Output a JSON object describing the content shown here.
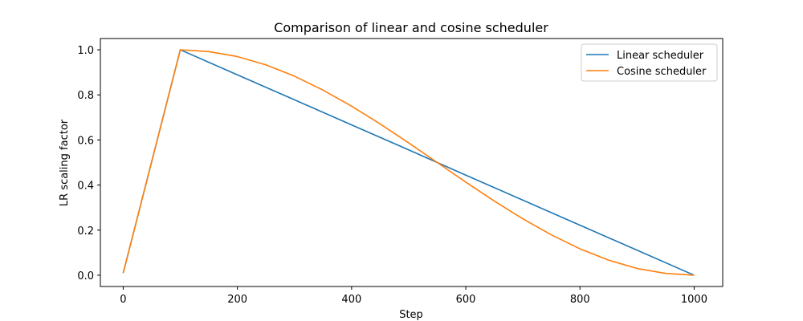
{
  "chart_data": {
    "type": "line",
    "title": "Comparison of linear and cosine scheduler",
    "xlabel": "Step",
    "ylabel": "LR scaling factor",
    "xlim": [
      -40,
      1050
    ],
    "ylim": [
      -0.05,
      1.05
    ],
    "xticks": [
      0,
      200,
      400,
      600,
      800,
      1000
    ],
    "yticks": [
      0.0,
      0.2,
      0.4,
      0.6,
      0.8,
      1.0
    ],
    "xtick_labels": [
      "0",
      "200",
      "400",
      "600",
      "800",
      "1000"
    ],
    "ytick_labels": [
      "0.0",
      "0.2",
      "0.4",
      "0.6",
      "0.8",
      "1.0"
    ],
    "grid": false,
    "legend_position": "top-right",
    "series": [
      {
        "name": "Linear scheduler",
        "color": "#1f77b4",
        "x": [
          0,
          100,
          200,
          300,
          400,
          500,
          600,
          700,
          800,
          900,
          1000
        ],
        "y": [
          0.01,
          1.0,
          0.889,
          0.778,
          0.667,
          0.556,
          0.444,
          0.333,
          0.222,
          0.111,
          0.0
        ]
      },
      {
        "name": "Cosine scheduler",
        "color": "#ff7f0e",
        "x": [
          0,
          100,
          150,
          200,
          250,
          300,
          350,
          400,
          450,
          500,
          550,
          600,
          650,
          700,
          750,
          800,
          850,
          900,
          950,
          1000
        ],
        "y": [
          0.01,
          1.0,
          0.992,
          0.97,
          0.933,
          0.883,
          0.821,
          0.75,
          0.671,
          0.587,
          0.5,
          0.413,
          0.329,
          0.25,
          0.179,
          0.117,
          0.067,
          0.03,
          0.008,
          0.0
        ]
      }
    ]
  }
}
